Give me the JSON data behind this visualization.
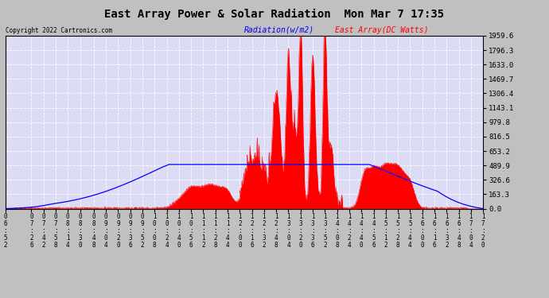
{
  "title": "East Array Power & Solar Radiation  Mon Mar 7 17:35",
  "copyright": "Copyright 2022 Cartronics.com",
  "legend_blue": "Radiation(w/m2)",
  "legend_red": "East Array(DC Watts)",
  "y_max": 1959.6,
  "y_min": 0.0,
  "y_ticks": [
    0.0,
    163.3,
    326.6,
    489.9,
    653.2,
    816.5,
    979.8,
    1143.1,
    1306.4,
    1469.7,
    1633.0,
    1796.3,
    1959.6
  ],
  "bg_color": "#c0c0c0",
  "plot_bg": "#dcdcf5",
  "blue_color": "#0000ff",
  "red_color": "#ff0000",
  "grid_color": "#ffffff",
  "x_labels": [
    "06:52",
    "07:26",
    "07:42",
    "07:58",
    "08:14",
    "08:30",
    "08:48",
    "09:04",
    "09:20",
    "09:36",
    "09:52",
    "10:08",
    "10:24",
    "10:40",
    "10:56",
    "11:12",
    "11:28",
    "11:44",
    "12:00",
    "12:16",
    "12:32",
    "12:48",
    "13:04",
    "13:20",
    "13:36",
    "13:52",
    "14:08",
    "14:24",
    "14:40",
    "14:56",
    "15:12",
    "15:28",
    "15:44",
    "16:00",
    "16:16",
    "16:32",
    "16:48",
    "17:04",
    "17:20"
  ]
}
